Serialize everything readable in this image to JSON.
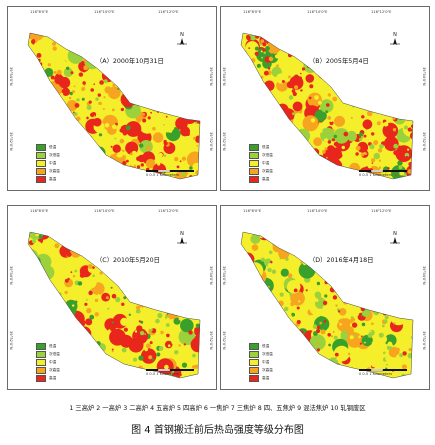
{
  "panels": [
    {
      "id": "a",
      "title": "（A）2000年10月31日",
      "seed": 11,
      "weights": [
        0.07,
        0.12,
        0.22,
        0.24,
        0.35
      ]
    },
    {
      "id": "b",
      "title": "（B）2005年5月4日",
      "seed": 23,
      "weights": [
        0.06,
        0.1,
        0.18,
        0.25,
        0.41
      ]
    },
    {
      "id": "c",
      "title": "（C）2010年5月20日",
      "seed": 37,
      "weights": [
        0.18,
        0.17,
        0.26,
        0.17,
        0.22
      ]
    },
    {
      "id": "d",
      "title": "（D）2016年4月18日",
      "seed": 53,
      "weights": [
        0.12,
        0.16,
        0.38,
        0.17,
        0.17
      ]
    }
  ],
  "legend": {
    "items": [
      {
        "label": "低温",
        "color": "#3aa02c"
      },
      {
        "label": "次低温",
        "color": "#9bd13a"
      },
      {
        "label": "中温",
        "color": "#f5ee2a"
      },
      {
        "label": "次高温",
        "color": "#f7a51e"
      },
      {
        "label": "高温",
        "color": "#e8261c"
      }
    ]
  },
  "axes": {
    "top_ticks": [
      "116°8'0\"E",
      "116°10'0\"E",
      "116°12'0\"E"
    ],
    "left_ticks": [
      "39°54'0\"N",
      "39°52'0\"N"
    ],
    "right_ticks": [
      "39°54'0\"N",
      "39°52'0\"N"
    ]
  },
  "north_label": "N",
  "scale_label": "0  0.5  1 Kilometers",
  "footer": {
    "key": "1 三高炉  2 一高炉  3 二高炉  4 五高炉  5 四高炉  6 一焦炉  7 三焦炉  8 四、五焦炉  9 混法焦炉  10 轧钢废区",
    "caption": "图 4  首钢搬迁前后热岛强度等级分布图"
  }
}
